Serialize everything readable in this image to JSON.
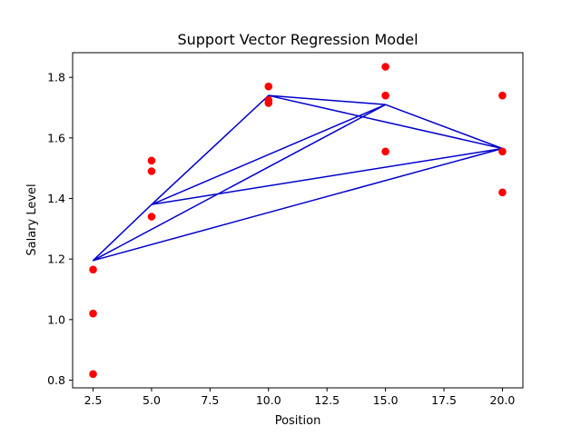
{
  "chart_data": {
    "type": "scatter",
    "title": "Support Vector Regression Model",
    "xlabel": "Position",
    "ylabel": "Salary Level",
    "xlim": [
      1.625,
      20.875
    ],
    "ylim": [
      0.7745,
      1.8815
    ],
    "xticks": [
      2.5,
      5.0,
      7.5,
      10.0,
      12.5,
      15.0,
      17.5,
      20.0
    ],
    "xtick_labels": [
      "2.5",
      "5.0",
      "7.5",
      "10.0",
      "12.5",
      "15.0",
      "17.5",
      "20.0"
    ],
    "yticks": [
      0.8,
      1.0,
      1.2,
      1.4,
      1.6,
      1.8
    ],
    "ytick_labels": [
      "0.8",
      "1.0",
      "1.2",
      "1.4",
      "1.6",
      "1.8"
    ],
    "grid": false,
    "legend": "none",
    "series": [
      {
        "kind": "scatter",
        "color": "#ff0000",
        "points": [
          [
            2.5,
            0.82
          ],
          [
            2.5,
            1.02
          ],
          [
            2.5,
            1.165
          ],
          [
            5.0,
            1.34
          ],
          [
            5.0,
            1.49
          ],
          [
            5.0,
            1.525
          ],
          [
            10.0,
            1.715
          ],
          [
            10.0,
            1.725
          ],
          [
            10.0,
            1.77
          ],
          [
            15.0,
            1.555
          ],
          [
            15.0,
            1.74
          ],
          [
            15.0,
            1.835
          ],
          [
            20.0,
            1.42
          ],
          [
            20.0,
            1.555
          ],
          [
            20.0,
            1.74
          ]
        ]
      },
      {
        "kind": "line",
        "color": "#0000cc",
        "points": [
          [
            2.5,
            1.195
          ],
          [
            5.0,
            1.38
          ],
          [
            10.0,
            1.74
          ],
          [
            15.0,
            1.71
          ],
          [
            20.0,
            1.565
          ],
          [
            2.5,
            1.195
          ],
          [
            15.0,
            1.71
          ],
          [
            5.0,
            1.38
          ],
          [
            20.0,
            1.565
          ],
          [
            10.0,
            1.74
          ],
          [
            5.0,
            1.38
          ],
          [
            15.0,
            1.71
          ]
        ]
      }
    ]
  }
}
